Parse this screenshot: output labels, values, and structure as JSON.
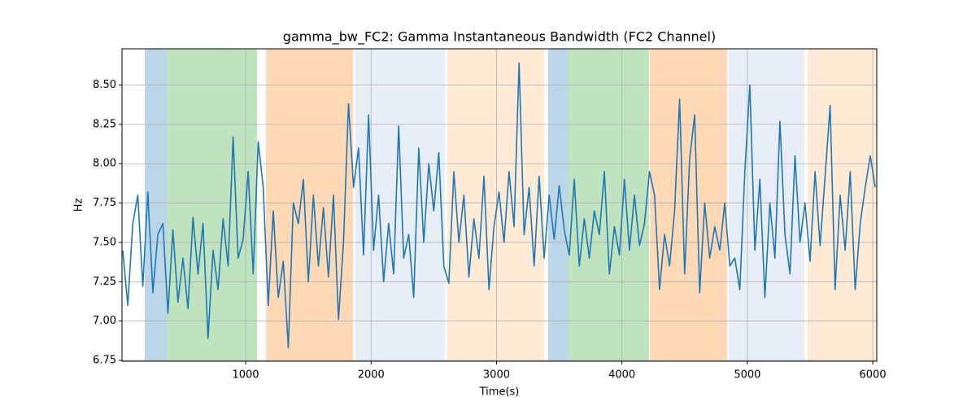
{
  "chart_data": {
    "type": "line",
    "title": "gamma_bw_FC2: Gamma Instantaneous Bandwidth (FC2 Channel)",
    "x_label": "Time(s)",
    "y_label": "Hz",
    "xlim": [
      14,
      6032
    ],
    "ylim": [
      6.745,
      8.73
    ],
    "xticks": [
      1000,
      2000,
      3000,
      4000,
      5000,
      6000
    ],
    "yticks": [
      {
        "value": 6.75,
        "label": "6.75"
      },
      {
        "value": 7.0,
        "label": "7.00"
      },
      {
        "value": 7.25,
        "label": "7.25"
      },
      {
        "value": 7.5,
        "label": "7.50"
      },
      {
        "value": 7.75,
        "label": "7.75"
      },
      {
        "value": 8.0,
        "label": "8.00"
      },
      {
        "value": 8.25,
        "label": "8.25"
      },
      {
        "value": 8.5,
        "label": "8.50"
      }
    ],
    "grid": true,
    "spans": [
      {
        "x": [
          196,
          377
        ],
        "color": "#1f77b4",
        "alpha": 0.3
      },
      {
        "x": [
          377,
          1091
        ],
        "color": "#2ca02c",
        "alpha": 0.3
      },
      {
        "x": [
          1162,
          1856
        ],
        "color": "#ff7f0e",
        "alpha": 0.3
      },
      {
        "x": [
          1875,
          2589
        ],
        "color": "#aec7e8",
        "alpha": 0.3
      },
      {
        "x": [
          2608,
          3380
        ],
        "color": "#ffbb78",
        "alpha": 0.3
      },
      {
        "x": [
          3412,
          3574
        ],
        "color": "#1f77b4",
        "alpha": 0.3
      },
      {
        "x": [
          3574,
          4216
        ],
        "color": "#2ca02c",
        "alpha": 0.3
      },
      {
        "x": [
          4223,
          4839
        ],
        "color": "#ff7f0e",
        "alpha": 0.3
      },
      {
        "x": [
          4852,
          5455
        ],
        "color": "#aec7e8",
        "alpha": 0.3
      },
      {
        "x": [
          5481,
          6032
        ],
        "color": "#ffbb78",
        "alpha": 0.3
      }
    ],
    "x": [
      20,
      60,
      100,
      140,
      180,
      220,
      260,
      300,
      340,
      380,
      420,
      460,
      500,
      540,
      580,
      620,
      660,
      700,
      740,
      780,
      820,
      860,
      900,
      940,
      980,
      1020,
      1060,
      1100,
      1140,
      1180,
      1220,
      1260,
      1300,
      1340,
      1380,
      1420,
      1460,
      1500,
      1540,
      1580,
      1620,
      1660,
      1700,
      1740,
      1780,
      1820,
      1860,
      1900,
      1940,
      1980,
      2020,
      2060,
      2100,
      2140,
      2180,
      2220,
      2260,
      2300,
      2340,
      2380,
      2420,
      2460,
      2500,
      2540,
      2580,
      2620,
      2660,
      2700,
      2740,
      2780,
      2820,
      2860,
      2900,
      2940,
      2980,
      3020,
      3060,
      3100,
      3140,
      3180,
      3220,
      3260,
      3300,
      3340,
      3380,
      3420,
      3460,
      3500,
      3540,
      3580,
      3620,
      3660,
      3700,
      3740,
      3780,
      3820,
      3860,
      3900,
      3940,
      3980,
      4020,
      4060,
      4100,
      4140,
      4180,
      4220,
      4260,
      4300,
      4340,
      4380,
      4420,
      4460,
      4500,
      4540,
      4580,
      4620,
      4660,
      4700,
      4740,
      4780,
      4820,
      4860,
      4900,
      4940,
      4980,
      5020,
      5060,
      5100,
      5140,
      5180,
      5220,
      5260,
      5300,
      5340,
      5380,
      5420,
      5460,
      5500,
      5540,
      5580,
      5620,
      5660,
      5700,
      5740,
      5780,
      5820,
      5860,
      5900,
      5940,
      5980,
      6020
    ],
    "series": [
      {
        "color": "#1f77b4",
        "values": [
          7.45,
          7.1,
          7.62,
          7.8,
          7.22,
          7.82,
          7.18,
          7.55,
          7.62,
          7.05,
          7.58,
          7.12,
          7.4,
          7.08,
          7.66,
          7.3,
          7.62,
          6.89,
          7.45,
          7.2,
          7.65,
          7.35,
          8.17,
          7.4,
          7.52,
          7.95,
          7.3,
          8.14,
          7.85,
          7.1,
          7.7,
          7.15,
          7.38,
          6.83,
          7.75,
          7.62,
          7.9,
          7.25,
          7.8,
          7.35,
          7.72,
          7.28,
          7.8,
          7.01,
          7.5,
          8.38,
          7.85,
          8.1,
          7.42,
          8.31,
          7.45,
          7.8,
          7.25,
          7.62,
          7.3,
          8.24,
          7.4,
          7.55,
          7.15,
          8.1,
          7.5,
          8.0,
          7.7,
          8.07,
          7.35,
          7.24,
          7.95,
          7.5,
          7.8,
          7.28,
          7.65,
          7.4,
          7.92,
          7.2,
          7.6,
          7.82,
          7.5,
          7.95,
          7.6,
          8.64,
          7.55,
          7.85,
          7.35,
          7.92,
          7.4,
          7.8,
          7.52,
          7.86,
          7.58,
          7.42,
          7.9,
          7.35,
          7.65,
          7.4,
          7.7,
          7.55,
          7.95,
          7.3,
          7.6,
          7.42,
          7.9,
          7.45,
          7.8,
          7.48,
          7.62,
          7.95,
          7.8,
          7.2,
          7.55,
          7.35,
          7.7,
          8.41,
          7.3,
          8.03,
          8.31,
          7.18,
          7.75,
          7.4,
          7.6,
          7.45,
          7.75,
          7.35,
          7.4,
          7.2,
          7.95,
          8.5,
          7.45,
          7.9,
          7.15,
          7.75,
          7.4,
          8.27,
          7.55,
          7.3,
          8.05,
          7.5,
          7.75,
          7.38,
          7.95,
          7.48,
          7.92,
          8.37,
          7.2,
          7.8,
          7.45,
          7.95,
          7.2,
          7.62,
          7.85,
          8.05,
          7.85
        ]
      }
    ]
  }
}
